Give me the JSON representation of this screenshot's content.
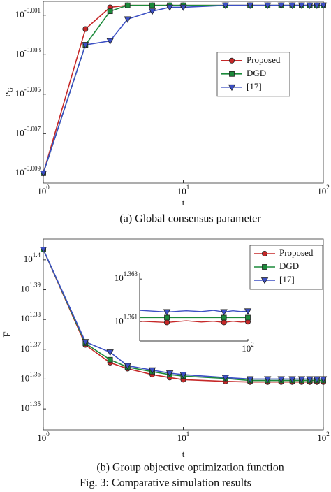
{
  "chart_data": [
    {
      "type": "line",
      "caption": "(a) Global consensus parameter",
      "xlabel": "t",
      "ylabel": "e",
      "ylabel_sub": "G",
      "xscale": "log",
      "yscale": "log",
      "xlim": [
        1,
        100
      ],
      "xticks": [
        {
          "value": 1,
          "label": [
            "10",
            "0"
          ]
        },
        {
          "value": 10,
          "label": [
            "10",
            "1"
          ]
        },
        {
          "value": 100,
          "label": [
            "10",
            "2"
          ]
        }
      ],
      "ylim": [
        0.978362,
        0.999309
      ],
      "yticks": [
        {
          "value": 0.97949,
          "label": [
            "10",
            "-0.009"
          ]
        },
        {
          "value": 0.984011,
          "label": [
            "10",
            "-0.007"
          ]
        },
        {
          "value": 0.988553,
          "label": [
            "10",
            "-0.005"
          ]
        },
        {
          "value": 0.993116,
          "label": [
            "10",
            "-0.003"
          ]
        },
        {
          "value": 0.9977,
          "label": [
            "10",
            "-0.001"
          ]
        }
      ],
      "legend": "center right",
      "x": [
        1,
        2,
        3,
        4,
        6,
        8,
        10,
        20,
        30,
        40,
        50,
        60,
        70,
        80,
        90,
        100
      ],
      "series": [
        {
          "name": "Proposed",
          "color": "#c62828",
          "marker": "circle",
          "values": [
            0.97949,
            0.996094,
            0.998619,
            0.998849,
            0.998849,
            0.998849,
            0.998849,
            0.998849,
            0.998849,
            0.998849,
            0.998849,
            0.998849,
            0.998849,
            0.998849,
            0.998849,
            0.998849
          ]
        },
        {
          "name": "DGD",
          "color": "#1b8a3a",
          "marker": "square",
          "values": [
            0.97949,
            0.99426,
            0.99816,
            0.998849,
            0.998849,
            0.998849,
            0.998849,
            0.998849,
            0.998849,
            0.998849,
            0.998849,
            0.998849,
            0.998849,
            0.998849,
            0.998849,
            0.998849
          ]
        },
        {
          "name": "[17]",
          "color": "#3b4fc4",
          "marker": "triangle",
          "values": [
            0.97949,
            0.99426,
            0.994718,
            0.997241,
            0.99816,
            0.998619,
            0.998619,
            0.998849,
            0.998849,
            0.998849,
            0.998849,
            0.998849,
            0.998849,
            0.998849,
            0.998849,
            0.998849
          ]
        }
      ]
    },
    {
      "type": "line",
      "caption": "(b) Group objective optimization function",
      "xlabel": "t",
      "ylabel": "F",
      "xscale": "log",
      "yscale": "log",
      "xlim": [
        1,
        100
      ],
      "xticks": [
        {
          "value": 1,
          "label": [
            "10",
            "0"
          ]
        },
        {
          "value": 10,
          "label": [
            "10",
            "1"
          ]
        },
        {
          "value": 100,
          "label": [
            "10",
            "2"
          ]
        }
      ],
      "ylim": [
        22.029,
        25.527
      ],
      "yticks": [
        {
          "value": 22.387,
          "label": [
            "10",
            "1.35"
          ]
        },
        {
          "value": 22.909,
          "label": [
            "10",
            "1.36"
          ]
        },
        {
          "value": 23.442,
          "label": [
            "10",
            "1.37"
          ]
        },
        {
          "value": 23.988,
          "label": [
            "10",
            "1.38"
          ]
        },
        {
          "value": 24.547,
          "label": [
            "10",
            "1.39"
          ]
        },
        {
          "value": 25.119,
          "label": [
            "10",
            "1.4"
          ]
        }
      ],
      "legend": "upper right",
      "x": [
        1,
        2,
        3,
        4,
        6,
        8,
        10,
        20,
        30,
        40,
        50,
        60,
        70,
        80,
        90,
        100
      ],
      "series": [
        {
          "name": "Proposed",
          "color": "#c62828",
          "marker": "circle",
          "values": [
            25.322,
            23.523,
            23.201,
            23.094,
            22.988,
            22.935,
            22.898,
            22.867,
            22.856,
            22.856,
            22.856,
            22.856,
            22.856,
            22.856,
            22.856,
            22.856
          ]
        },
        {
          "name": "DGD",
          "color": "#1b8a3a",
          "marker": "square",
          "values": [
            25.322,
            23.55,
            23.254,
            23.121,
            23.041,
            22.988,
            22.962,
            22.92,
            22.883,
            22.883,
            22.883,
            22.883,
            22.883,
            22.883,
            22.883,
            22.883
          ]
        },
        {
          "name": "[17]",
          "color": "#3b4fc4",
          "marker": "triangle",
          "values": [
            25.322,
            23.577,
            23.389,
            23.147,
            23.068,
            23.014,
            22.988,
            22.935,
            22.909,
            22.909,
            22.909,
            22.909,
            22.909,
            22.909,
            22.909,
            22.909
          ]
        }
      ],
      "inset": {
        "xscale": "log",
        "yscale": "log",
        "xlim": [
          20,
          100
        ],
        "xticks": [
          {
            "value": 100,
            "label": [
              "10",
              "2"
            ]
          }
        ],
        "ylim": [
          22.914,
          23.084
        ],
        "yticks": [
          {
            "value": 22.962,
            "label": [
              "10",
              "1.361"
            ]
          },
          {
            "value": 23.068,
            "label": [
              "10",
              "1.363"
            ]
          }
        ],
        "x": [
          20,
          30,
          40,
          50,
          60,
          70,
          80,
          90,
          100
        ],
        "series": [
          {
            "color": "#c62828",
            "marker": "circle",
            "values": [
              22.963,
              22.96,
              22.964,
              22.961,
              22.963,
              22.96,
              22.963,
              22.961,
              22.962
            ]
          },
          {
            "color": "#1b8a3a",
            "marker": "square",
            "values": [
              22.972,
              22.972,
              22.972,
              22.972,
              22.972,
              22.972,
              22.972,
              22.972,
              22.972
            ]
          },
          {
            "color": "#3b4fc4",
            "marker": "triangle",
            "values": [
              22.99,
              22.986,
              22.989,
              22.987,
              22.99,
              22.986,
              22.989,
              22.987,
              22.988
            ]
          }
        ]
      }
    }
  ],
  "figure_caption": "Fig. 3: Comparative simulation results"
}
